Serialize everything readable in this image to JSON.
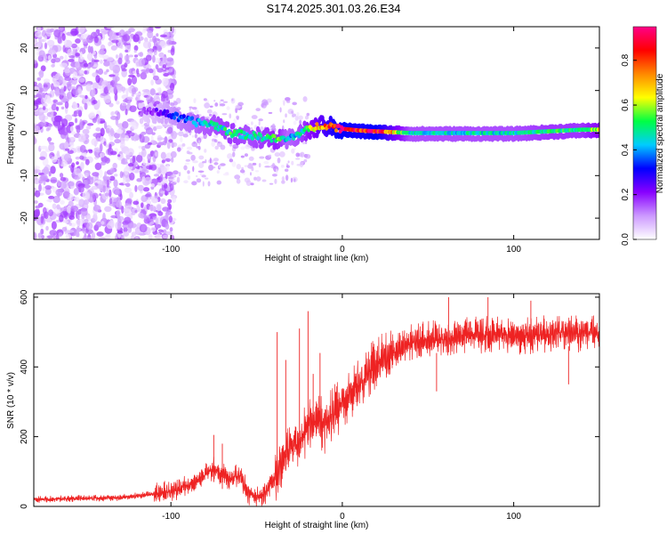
{
  "title": "S174.2025.301.03.26.E34",
  "chart_data": [
    {
      "type": "heatmap",
      "name": "spectrogram",
      "xlabel": "Height of straight line (km)",
      "ylabel": "Frequency (Hz)",
      "xlim": [
        -180,
        150
      ],
      "ylim": [
        -25,
        25
      ],
      "xticks": [
        -100,
        0,
        100
      ],
      "xtick_labels": [
        "-100",
        "0",
        "100"
      ],
      "yticks": [
        20,
        10,
        0,
        -10,
        -20
      ],
      "ytick_labels": [
        "20",
        "10",
        "0",
        "-10",
        "-20"
      ],
      "colorbar": {
        "label": "Normalized spectral amplitude",
        "range": [
          0.0,
          0.95
        ],
        "ticks": [
          0.0,
          0.2,
          0.4,
          0.6,
          0.8
        ],
        "tick_labels": [
          "0.0",
          "0.2",
          "0.4",
          "0.6",
          "0.8"
        ],
        "colors": [
          "#ffffff",
          "#cc99ff",
          "#8800ff",
          "#0000ff",
          "#00ccff",
          "#00ff44",
          "#ffff00",
          "#ff8800",
          "#ff0000",
          "#ff0088"
        ]
      },
      "ridge": {
        "x": [
          -115,
          -105,
          -95,
          -85,
          -75,
          -65,
          -55,
          -45,
          -38,
          -32,
          -25,
          -18,
          -12,
          -5,
          0,
          10,
          20,
          40,
          60,
          80,
          100,
          120,
          140,
          150
        ],
        "freq": [
          5,
          5,
          3.5,
          2.5,
          2,
          0,
          -0.5,
          -1,
          -1.5,
          -1.5,
          0,
          1,
          2,
          1.5,
          1,
          0.6,
          0.4,
          0,
          0,
          0,
          0,
          0.4,
          0.8,
          0.8
        ],
        "amplitude": [
          0.15,
          0.25,
          0.35,
          0.4,
          0.45,
          0.5,
          0.45,
          0.5,
          0.55,
          0.4,
          0.45,
          0.6,
          0.7,
          0.85,
          0.9,
          0.85,
          0.9,
          0.45,
          0.45,
          0.45,
          0.45,
          0.5,
          0.5,
          0.6
        ]
      }
    },
    {
      "type": "line",
      "name": "snr",
      "xlabel": "Height of straight line (km)",
      "ylabel": "SNR (10 * v/v)",
      "xlim": [
        -180,
        150
      ],
      "ylim": [
        0,
        610
      ],
      "xticks": [
        -100,
        0,
        100
      ],
      "xtick_labels": [
        "-100",
        "0",
        "100"
      ],
      "yticks": [
        0,
        200,
        400,
        600
      ],
      "ytick_labels": [
        "0",
        "200",
        "400",
        "600"
      ],
      "color": "#ee2222",
      "envelope": {
        "x": [
          -180,
          -130,
          -110,
          -100,
          -90,
          -80,
          -75,
          -70,
          -65,
          -60,
          -55,
          -50,
          -45,
          -40,
          -35,
          -30,
          -25,
          -20,
          -15,
          -10,
          -5,
          0,
          5,
          10,
          15,
          20,
          25,
          30,
          40,
          50,
          60,
          70,
          80,
          90,
          100,
          110,
          120,
          130,
          140,
          150
        ],
        "y": [
          20,
          25,
          35,
          40,
          60,
          90,
          110,
          90,
          80,
          90,
          40,
          25,
          40,
          80,
          130,
          170,
          180,
          230,
          250,
          230,
          270,
          290,
          330,
          350,
          380,
          410,
          420,
          440,
          470,
          480,
          480,
          490,
          490,
          495,
          490,
          490,
          495,
          500,
          495,
          500
        ]
      },
      "spikes": {
        "x": [
          -75,
          -70,
          -38,
          -33,
          -25,
          -20,
          -17,
          -13,
          55,
          62,
          85,
          110,
          132
        ],
        "y": [
          205,
          180,
          500,
          420,
          510,
          560,
          380,
          440,
          330,
          600,
          600,
          590,
          350
        ]
      }
    }
  ]
}
